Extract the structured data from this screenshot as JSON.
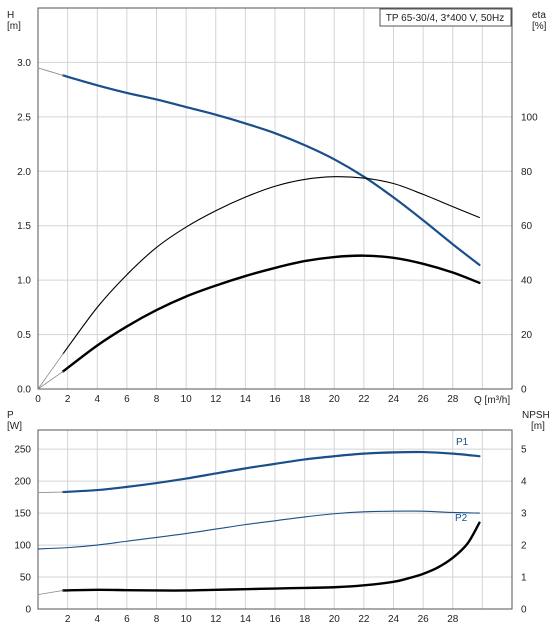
{
  "chart_data": [
    {
      "type": "line",
      "title": "TP 65-30/4, 3*400 V, 50Hz",
      "xlabel": "Q [m³/h]",
      "xlim": [
        0,
        32
      ],
      "xticks": [
        0,
        2,
        4,
        6,
        8,
        10,
        12,
        14,
        16,
        18,
        20,
        22,
        24,
        26,
        28
      ],
      "ylabel_left": {
        "name": "H",
        "unit": "[m]"
      },
      "ylim_left": [
        0,
        3.5
      ],
      "yticks_left": [
        "0.0",
        "0.5",
        "1.0",
        "1.5",
        "2.0",
        "2.5",
        "3.0"
      ],
      "ylabel_right": {
        "name": "eta",
        "unit": "[%]"
      },
      "ylim_right": [
        0,
        140
      ],
      "yticks_right": [
        "0",
        "20",
        "40",
        "60",
        "80",
        "100"
      ],
      "grid": true,
      "series": [
        {
          "axis": "H",
          "color": "#1a4f8b",
          "width": 2.2,
          "x": [
            1.7,
            4,
            6,
            8,
            10,
            12,
            14,
            16,
            18,
            20,
            22,
            24,
            26,
            28,
            29.8
          ],
          "values": [
            2.88,
            2.79,
            2.72,
            2.66,
            2.59,
            2.52,
            2.44,
            2.35,
            2.24,
            2.11,
            1.95,
            1.76,
            1.55,
            1.33,
            1.14
          ]
        },
        {
          "axis": "H",
          "color": "#888888",
          "width": 0.8,
          "x": [
            0,
            1.7
          ],
          "values": [
            2.95,
            2.88
          ]
        },
        {
          "axis": "eta",
          "color": "#000000",
          "width": 1.1,
          "x": [
            1.7,
            4,
            6,
            8,
            10,
            12,
            14,
            16,
            18,
            20,
            22,
            24,
            26,
            28,
            29.8
          ],
          "values": [
            13,
            30,
            42,
            52,
            59.5,
            65.5,
            70.5,
            74.5,
            77,
            78,
            77.5,
            75.5,
            71.5,
            67,
            63
          ]
        },
        {
          "axis": "eta",
          "color": "#000000",
          "width": 2.4,
          "x": [
            1.7,
            4,
            6,
            8,
            10,
            12,
            14,
            16,
            18,
            20,
            22,
            24,
            26,
            28,
            29.8
          ],
          "values": [
            6.5,
            16,
            23,
            29,
            34,
            38,
            41.5,
            44.5,
            47,
            48.5,
            49,
            48.2,
            46,
            42.8,
            39
          ]
        },
        {
          "axis": "eta",
          "color": "#888888",
          "width": 0.8,
          "x": [
            0,
            1.7
          ],
          "values": [
            0,
            13
          ]
        },
        {
          "axis": "eta",
          "color": "#888888",
          "width": 0.8,
          "x": [
            0,
            1.7
          ],
          "values": [
            0,
            6.5
          ]
        }
      ]
    },
    {
      "type": "line",
      "xlim": [
        0,
        32
      ],
      "xticks": [
        2,
        4,
        6,
        8,
        10,
        12,
        14,
        16,
        18,
        20,
        22,
        24,
        26,
        28
      ],
      "ylabel_left": {
        "name": "P",
        "unit": "[W]"
      },
      "ylim_left": [
        0,
        280
      ],
      "yticks_left": [
        "0",
        "50",
        "100",
        "150",
        "200",
        "250"
      ],
      "ylabel_right": {
        "name": "NPSH",
        "unit": "[m]"
      },
      "ylim_right": [
        0,
        5.6
      ],
      "yticks_right": [
        "0",
        "1",
        "2",
        "3",
        "4",
        "5"
      ],
      "grid": true,
      "series": [
        {
          "name": "P1",
          "axis": "P",
          "color": "#1a4f8b",
          "width": 2.2,
          "x": [
            1.7,
            4,
            6,
            8,
            10,
            12,
            14,
            16,
            18,
            20,
            22,
            24,
            26,
            28,
            29.8
          ],
          "values": [
            183,
            186,
            191,
            197,
            204,
            212,
            220,
            227,
            234,
            239,
            243,
            245,
            245.5,
            243,
            239
          ]
        },
        {
          "axis": "P",
          "color": "#888888",
          "width": 0.8,
          "x": [
            0,
            1.7
          ],
          "values": [
            182,
            183
          ]
        },
        {
          "name": "P2",
          "axis": "P",
          "color": "#1a4f8b",
          "width": 1.1,
          "x": [
            0,
            2,
            4,
            6,
            8,
            10,
            12,
            14,
            16,
            18,
            20,
            22,
            24,
            26,
            28,
            29.8
          ],
          "values": [
            94,
            96,
            100,
            106,
            112,
            118,
            125,
            132,
            138,
            144,
            149,
            152,
            153,
            153,
            151,
            150
          ]
        },
        {
          "axis": "NPSH",
          "color": "#000000",
          "width": 2.4,
          "x": [
            1.7,
            4,
            6,
            8,
            10,
            12,
            14,
            16,
            18,
            20,
            22,
            24,
            25,
            26,
            27,
            28,
            29,
            29.8
          ],
          "values": [
            0.58,
            0.6,
            0.59,
            0.58,
            0.58,
            0.6,
            0.62,
            0.64,
            0.66,
            0.68,
            0.74,
            0.85,
            0.96,
            1.1,
            1.3,
            1.6,
            2.05,
            2.7
          ]
        },
        {
          "axis": "NPSH",
          "color": "#888888",
          "width": 0.8,
          "x": [
            0,
            1.7
          ],
          "values": [
            0.45,
            0.58
          ]
        }
      ],
      "series_labels": [
        {
          "text": "P1",
          "color": "#1a4f8b"
        },
        {
          "text": "P2",
          "color": "#1a4f8b"
        }
      ]
    }
  ]
}
